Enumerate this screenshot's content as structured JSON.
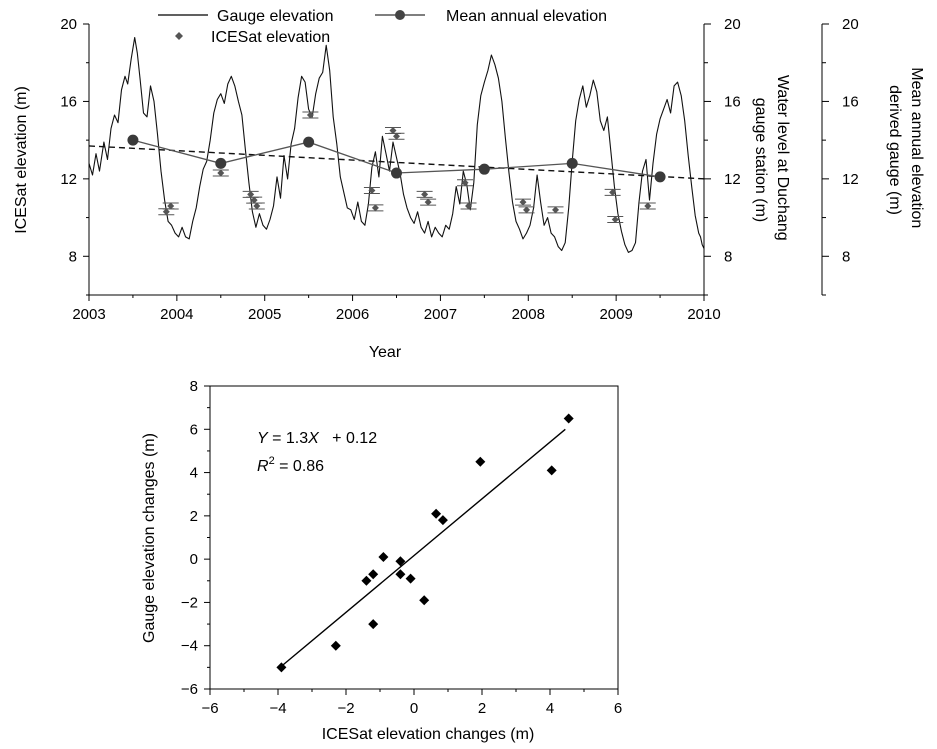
{
  "chart_data": [
    {
      "type": "line",
      "xlabel": "Year",
      "ylabel": "ICESat elevation (m)",
      "ylabel_right1": [
        "Water level at Duchang",
        "gauge station (m)"
      ],
      "ylabel_right2": [
        "Mean annual elevation",
        "derived gauge (m)"
      ],
      "xlim": [
        2003,
        2010
      ],
      "ylim": [
        6,
        20
      ],
      "x_ticks": [
        "2003",
        "2004",
        "2005",
        "2006",
        "2007",
        "2008",
        "2009",
        "2010"
      ],
      "y_ticks": [
        "8",
        "12",
        "16",
        "20"
      ],
      "legend": {
        "gauge": "Gauge elevation",
        "icesat": "ICESat elevation",
        "mean": "Mean annual elevation"
      },
      "series": [
        {
          "name": "Gauge elevation",
          "style": "solid-line",
          "points": [
            [
              2003.0,
              12.8
            ],
            [
              2003.04,
              12.2
            ],
            [
              2003.08,
              13.3
            ],
            [
              2003.12,
              12.4
            ],
            [
              2003.17,
              13.9
            ],
            [
              2003.21,
              13.0
            ],
            [
              2003.25,
              14.6
            ],
            [
              2003.29,
              15.3
            ],
            [
              2003.33,
              14.9
            ],
            [
              2003.37,
              16.6
            ],
            [
              2003.41,
              17.3
            ],
            [
              2003.44,
              16.9
            ],
            [
              2003.48,
              18.2
            ],
            [
              2003.52,
              19.3
            ],
            [
              2003.55,
              18.5
            ],
            [
              2003.58,
              17.2
            ],
            [
              2003.62,
              15.4
            ],
            [
              2003.66,
              15.2
            ],
            [
              2003.7,
              16.8
            ],
            [
              2003.74,
              16.0
            ],
            [
              2003.78,
              14.3
            ],
            [
              2003.82,
              12.4
            ],
            [
              2003.86,
              10.9
            ],
            [
              2003.9,
              9.8
            ],
            [
              2003.94,
              9.6
            ],
            [
              2003.98,
              9.2
            ],
            [
              2004.02,
              9.0
            ],
            [
              2004.06,
              9.5
            ],
            [
              2004.1,
              9.0
            ],
            [
              2004.14,
              8.9
            ],
            [
              2004.18,
              9.8
            ],
            [
              2004.22,
              10.5
            ],
            [
              2004.26,
              11.6
            ],
            [
              2004.3,
              12.5
            ],
            [
              2004.34,
              12.9
            ],
            [
              2004.38,
              14.0
            ],
            [
              2004.42,
              15.4
            ],
            [
              2004.46,
              16.1
            ],
            [
              2004.5,
              16.4
            ],
            [
              2004.54,
              15.9
            ],
            [
              2004.58,
              16.9
            ],
            [
              2004.62,
              17.3
            ],
            [
              2004.66,
              16.8
            ],
            [
              2004.7,
              16.0
            ],
            [
              2004.74,
              15.3
            ],
            [
              2004.78,
              13.5
            ],
            [
              2004.82,
              11.8
            ],
            [
              2004.86,
              10.3
            ],
            [
              2004.9,
              9.5
            ],
            [
              2004.94,
              10.2
            ],
            [
              2004.98,
              9.6
            ],
            [
              2005.02,
              9.4
            ],
            [
              2005.06,
              9.9
            ],
            [
              2005.1,
              10.6
            ],
            [
              2005.14,
              12.1
            ],
            [
              2005.18,
              11.0
            ],
            [
              2005.22,
              13.2
            ],
            [
              2005.26,
              12.0
            ],
            [
              2005.3,
              13.8
            ],
            [
              2005.34,
              14.6
            ],
            [
              2005.38,
              16.2
            ],
            [
              2005.42,
              17.3
            ],
            [
              2005.46,
              17.0
            ],
            [
              2005.5,
              15.6
            ],
            [
              2005.54,
              15.2
            ],
            [
              2005.58,
              16.4
            ],
            [
              2005.62,
              17.2
            ],
            [
              2005.66,
              17.5
            ],
            [
              2005.7,
              18.9
            ],
            [
              2005.74,
              17.6
            ],
            [
              2005.78,
              15.2
            ],
            [
              2005.82,
              13.8
            ],
            [
              2005.86,
              12.1
            ],
            [
              2005.9,
              11.3
            ],
            [
              2005.94,
              10.5
            ],
            [
              2005.98,
              10.4
            ],
            [
              2006.02,
              9.9
            ],
            [
              2006.06,
              10.8
            ],
            [
              2006.1,
              9.8
            ],
            [
              2006.14,
              9.6
            ],
            [
              2006.18,
              10.7
            ],
            [
              2006.22,
              12.6
            ],
            [
              2006.26,
              13.4
            ],
            [
              2006.3,
              12.1
            ],
            [
              2006.34,
              14.2
            ],
            [
              2006.38,
              13.3
            ],
            [
              2006.42,
              12.4
            ],
            [
              2006.46,
              13.9
            ],
            [
              2006.5,
              13.1
            ],
            [
              2006.54,
              12.3
            ],
            [
              2006.58,
              11.2
            ],
            [
              2006.62,
              10.5
            ],
            [
              2006.66,
              10.0
            ],
            [
              2006.7,
              9.7
            ],
            [
              2006.74,
              10.3
            ],
            [
              2006.78,
              9.5
            ],
            [
              2006.82,
              9.2
            ],
            [
              2006.86,
              9.8
            ],
            [
              2006.9,
              9.0
            ],
            [
              2006.94,
              9.5
            ],
            [
              2006.98,
              9.2
            ],
            [
              2007.02,
              9.0
            ],
            [
              2007.06,
              9.6
            ],
            [
              2007.1,
              9.4
            ],
            [
              2007.14,
              10.2
            ],
            [
              2007.18,
              11.6
            ],
            [
              2007.22,
              10.7
            ],
            [
              2007.26,
              12.4
            ],
            [
              2007.3,
              11.7
            ],
            [
              2007.34,
              10.4
            ],
            [
              2007.38,
              11.8
            ],
            [
              2007.42,
              14.8
            ],
            [
              2007.46,
              16.3
            ],
            [
              2007.5,
              17.0
            ],
            [
              2007.54,
              17.6
            ],
            [
              2007.58,
              18.4
            ],
            [
              2007.62,
              17.9
            ],
            [
              2007.66,
              17.2
            ],
            [
              2007.7,
              16.0
            ],
            [
              2007.74,
              14.1
            ],
            [
              2007.78,
              12.3
            ],
            [
              2007.82,
              10.8
            ],
            [
              2007.86,
              9.8
            ],
            [
              2007.9,
              9.4
            ],
            [
              2007.94,
              8.9
            ],
            [
              2007.98,
              9.2
            ],
            [
              2008.02,
              9.6
            ],
            [
              2008.06,
              10.5
            ],
            [
              2008.1,
              12.2
            ],
            [
              2008.14,
              10.8
            ],
            [
              2008.18,
              9.6
            ],
            [
              2008.22,
              10.0
            ],
            [
              2008.26,
              9.2
            ],
            [
              2008.3,
              9.0
            ],
            [
              2008.34,
              8.5
            ],
            [
              2008.38,
              8.3
            ],
            [
              2008.42,
              8.7
            ],
            [
              2008.46,
              10.5
            ],
            [
              2008.5,
              12.9
            ],
            [
              2008.54,
              15.0
            ],
            [
              2008.58,
              16.1
            ],
            [
              2008.62,
              16.8
            ],
            [
              2008.66,
              15.7
            ],
            [
              2008.7,
              16.3
            ],
            [
              2008.74,
              17.1
            ],
            [
              2008.78,
              16.5
            ],
            [
              2008.82,
              15.0
            ],
            [
              2008.86,
              14.5
            ],
            [
              2008.9,
              15.2
            ],
            [
              2008.94,
              13.4
            ],
            [
              2008.98,
              11.6
            ],
            [
              2009.02,
              10.2
            ],
            [
              2009.06,
              9.3
            ],
            [
              2009.1,
              8.6
            ],
            [
              2009.14,
              8.2
            ],
            [
              2009.18,
              8.3
            ],
            [
              2009.22,
              8.7
            ],
            [
              2009.26,
              10.8
            ],
            [
              2009.3,
              12.4
            ],
            [
              2009.34,
              13.0
            ],
            [
              2009.38,
              10.9
            ],
            [
              2009.42,
              12.8
            ],
            [
              2009.46,
              14.3
            ],
            [
              2009.5,
              15.1
            ],
            [
              2009.54,
              15.6
            ],
            [
              2009.58,
              16.1
            ],
            [
              2009.62,
              15.4
            ],
            [
              2009.66,
              16.8
            ],
            [
              2009.7,
              17.0
            ],
            [
              2009.74,
              16.3
            ],
            [
              2009.78,
              15.0
            ],
            [
              2009.82,
              13.2
            ],
            [
              2009.86,
              11.6
            ],
            [
              2009.9,
              10.1
            ],
            [
              2009.94,
              9.2
            ],
            [
              2009.96,
              9.0
            ],
            [
              2009.98,
              8.6
            ],
            [
              2010.0,
              8.4
            ]
          ]
        },
        {
          "name": "ICESat elevation",
          "style": "diamond-with-errorbar",
          "points": [
            [
              2003.88,
              10.3
            ],
            [
              2003.93,
              10.6
            ],
            [
              2004.5,
              12.3
            ],
            [
              2004.84,
              11.2
            ],
            [
              2004.88,
              10.9
            ],
            [
              2004.91,
              10.6
            ],
            [
              2005.52,
              15.3
            ],
            [
              2006.22,
              11.4
            ],
            [
              2006.26,
              10.5
            ],
            [
              2006.46,
              14.5
            ],
            [
              2006.5,
              14.2
            ],
            [
              2006.82,
              11.2
            ],
            [
              2006.86,
              10.8
            ],
            [
              2007.28,
              11.8
            ],
            [
              2007.32,
              10.6
            ],
            [
              2007.94,
              10.8
            ],
            [
              2007.98,
              10.4
            ],
            [
              2008.31,
              10.4
            ],
            [
              2008.96,
              11.3
            ],
            [
              2008.99,
              9.9
            ],
            [
              2009.36,
              10.6
            ]
          ]
        },
        {
          "name": "Mean annual elevation",
          "style": "line-with-circles",
          "points": [
            [
              2003.5,
              14.0
            ],
            [
              2004.5,
              12.8
            ],
            [
              2005.5,
              13.9
            ],
            [
              2006.5,
              12.3
            ],
            [
              2007.5,
              12.5
            ],
            [
              2008.5,
              12.8
            ],
            [
              2009.5,
              12.1
            ]
          ]
        },
        {
          "style": "dashed-trend",
          "points": [
            [
              2003.0,
              13.7
            ],
            [
              2010.0,
              12.0
            ]
          ]
        }
      ],
      "right_axes": [
        {
          "ylim": [
            6,
            20
          ],
          "ticks": [
            "8",
            "12",
            "16",
            "20"
          ]
        },
        {
          "ylim": [
            6,
            20
          ],
          "ticks": [
            "8",
            "12",
            "16",
            "20"
          ]
        }
      ]
    },
    {
      "type": "scatter",
      "xlabel": "ICESat elevation changes (m)",
      "ylabel": "Gauge elevation changes (m)",
      "xlim": [
        -6,
        6
      ],
      "ylim": [
        -6,
        8
      ],
      "x_ticks": [
        "−6",
        "−4",
        "−2",
        "0",
        "2",
        "4",
        "6"
      ],
      "y_ticks": [
        "−6",
        "−4",
        "−2",
        "0",
        "2",
        "4",
        "6",
        "8"
      ],
      "equation": {
        "y": "Y",
        "eq1": " = 1.3",
        "x": "X",
        "eq2": "   + 0.12"
      },
      "r2": {
        "r": "R",
        "sup": "2",
        "rest": " = 0.86"
      },
      "points": [
        [
          -3.9,
          -5.0
        ],
        [
          -2.3,
          -4.0
        ],
        [
          -1.2,
          -3.0
        ],
        [
          -1.4,
          -1.0
        ],
        [
          -1.2,
          -0.7
        ],
        [
          -0.9,
          0.1
        ],
        [
          -0.4,
          -0.1
        ],
        [
          -0.4,
          -0.7
        ],
        [
          -0.1,
          -0.9
        ],
        [
          0.3,
          -1.9
        ],
        [
          0.65,
          2.1
        ],
        [
          0.85,
          1.8
        ],
        [
          1.95,
          4.5
        ],
        [
          4.05,
          4.1
        ],
        [
          4.55,
          6.5
        ]
      ],
      "fit_line": [
        [
          -3.9,
          -4.95
        ],
        [
          4.45,
          6.0
        ]
      ]
    }
  ]
}
